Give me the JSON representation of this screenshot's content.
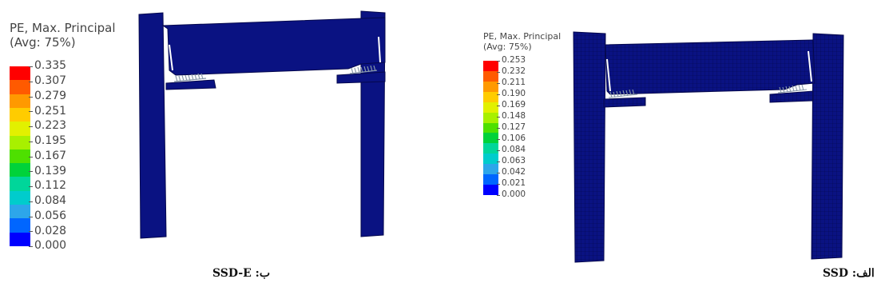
{
  "left_panel": {
    "legend": {
      "title_line1": "PE, Max. Principal",
      "title_line2": "(Avg: 75%)",
      "values": [
        "0.335",
        "0.307",
        "0.279",
        "0.251",
        "0.223",
        "0.195",
        "0.167",
        "0.139",
        "0.112",
        "0.084",
        "0.056",
        "0.028",
        "0.000"
      ],
      "colors": [
        "#ff0000",
        "#ff5a00",
        "#ff9900",
        "#ffcc00",
        "#e2f000",
        "#a8f000",
        "#4ee000",
        "#00d23a",
        "#00d69a",
        "#00cccc",
        "#2da6ea",
        "#0066ff",
        "#0000ff"
      ]
    },
    "caption": "ب: SSD-E"
  },
  "right_panel": {
    "legend": {
      "title_line1": "PE, Max. Principal",
      "title_line2": "(Avg: 75%)",
      "values": [
        "0.253",
        "0.232",
        "0.211",
        "0.190",
        "0.169",
        "0.148",
        "0.127",
        "0.106",
        "0.084",
        "0.063",
        "0.042",
        "0.021",
        "0.000"
      ],
      "colors": [
        "#ff0000",
        "#ff5a00",
        "#ff9900",
        "#ffcc00",
        "#e2f000",
        "#a8f000",
        "#4ee000",
        "#00d23a",
        "#00d69a",
        "#00cccc",
        "#2da6ea",
        "#0066ff",
        "#0000ff"
      ]
    },
    "caption": "الف: SSD"
  },
  "colors": {
    "frame_fill": "#0a1282",
    "frame_edge": "#05084d",
    "spring": "#8899aa"
  }
}
